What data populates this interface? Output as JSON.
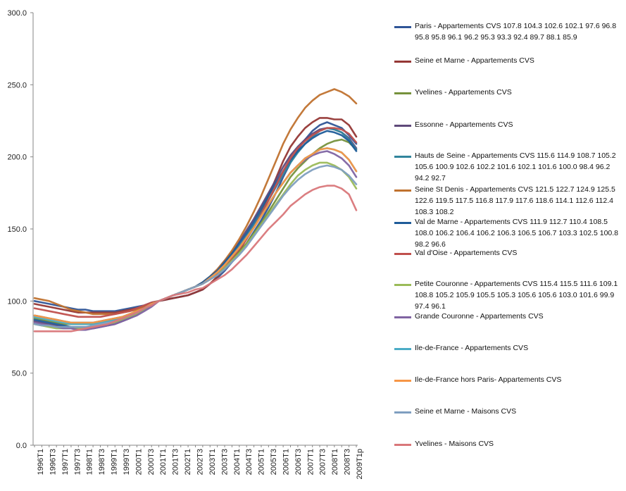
{
  "chart_data": {
    "type": "line",
    "title": "",
    "xlabel": "",
    "ylabel": "",
    "ylim": [
      0,
      300
    ],
    "yticks": [
      "0.0",
      "50.0",
      "100.0",
      "150.0",
      "200.0",
      "250.0",
      "300.0"
    ],
    "x_tick_labels": [
      "1996T1",
      "1996T3",
      "1997T1",
      "1997T3",
      "1998T1",
      "1998T3",
      "1999T1",
      "1999T3",
      "2000T1",
      "2000T3",
      "2001T1",
      "2001T3",
      "2002T1",
      "2002T3",
      "2003T1",
      "2003T3",
      "2004T1",
      "2004T3",
      "2005T1",
      "2005T3",
      "2006T1",
      "2006T3",
      "2007T1",
      "2007T3",
      "2008T1",
      "2008T3",
      "2009T1p"
    ],
    "grid": false,
    "legend_position": "right",
    "series": [
      {
        "name": "Paris - Appartements CVS 107.8 104.3 102.6 102.1 97.6 96.8 95.8 95.8 96.1 96.2 95.3 93.3 92.4 89.7 88.1 85.9",
        "color": "#2f5597",
        "values": [
          100,
          99,
          98,
          97,
          96,
          95,
          94,
          94,
          93,
          93,
          93,
          93,
          94,
          95,
          96,
          97,
          99,
          100,
          101,
          102,
          103,
          104,
          106,
          108,
          112,
          116,
          121,
          127,
          133,
          140,
          148,
          156,
          165,
          175,
          186,
          196,
          205,
          212,
          218,
          222,
          224,
          222,
          220,
          215,
          209
        ]
      },
      {
        "name": "Seine et Marne - Appartements CVS",
        "color": "#953735",
        "values": [
          98,
          97,
          96,
          95,
          94,
          93,
          92,
          92,
          92,
          92,
          92,
          92,
          93,
          94,
          95,
          96,
          98,
          100,
          101,
          102,
          103,
          104,
          106,
          108,
          112,
          117,
          123,
          129,
          135,
          143,
          152,
          162,
          173,
          185,
          197,
          207,
          214,
          220,
          224,
          227,
          227,
          226,
          226,
          222,
          214
        ]
      },
      {
        "name": "Yvelines - Appartements CVS",
        "color": "#76923c",
        "values": [
          88,
          87,
          86,
          85,
          84,
          84,
          84,
          84,
          84,
          85,
          86,
          87,
          88,
          90,
          92,
          95,
          98,
          100,
          102,
          104,
          106,
          108,
          110,
          112,
          115,
          119,
          124,
          129,
          134,
          140,
          147,
          154,
          162,
          170,
          178,
          186,
          192,
          197,
          202,
          206,
          209,
          211,
          212,
          210,
          205
        ]
      },
      {
        "name": "Essonne - Appartements CVS",
        "color": "#5f497a",
        "values": [
          86,
          85,
          84,
          83,
          82,
          81,
          81,
          81,
          81,
          82,
          83,
          84,
          86,
          88,
          91,
          94,
          97,
          100,
          102,
          104,
          106,
          108,
          110,
          113,
          117,
          122,
          128,
          134,
          141,
          149,
          157,
          166,
          175,
          184,
          193,
          201,
          207,
          212,
          216,
          219,
          220,
          219,
          217,
          213,
          206
        ]
      },
      {
        "name": "Hauts de Seine - Appartements CVS 115.6 114.9 108.7 105.2 105.6 100.9 102.6 102.2 101.6 102.1 101.6 100.0 98.4 96.2 94.2 92.7",
        "color": "#31859c",
        "values": [
          90,
          89,
          88,
          87,
          86,
          85,
          85,
          85,
          85,
          86,
          87,
          88,
          89,
          91,
          93,
          95,
          98,
          100,
          102,
          104,
          106,
          108,
          110,
          113,
          116,
          121,
          126,
          132,
          138,
          145,
          153,
          161,
          170,
          179,
          188,
          196,
          203,
          209,
          214,
          218,
          220,
          219,
          217,
          212,
          205
        ]
      },
      {
        "name": "Seine St Denis - Appartements CVS 121.5 122.7 124.9 125.5 122.6 119.5 117.5 116.8 117.9 117.6 118.6 114.1 112.6 112.4 108.3 108.2",
        "color": "#c0722f",
        "values": [
          102,
          101,
          100,
          98,
          96,
          94,
          93,
          92,
          91,
          91,
          91,
          91,
          92,
          93,
          94,
          96,
          98,
          100,
          102,
          104,
          106,
          108,
          110,
          113,
          117,
          122,
          128,
          135,
          143,
          152,
          162,
          173,
          185,
          197,
          209,
          219,
          227,
          234,
          239,
          243,
          245,
          247,
          245,
          242,
          237
        ]
      },
      {
        "name": "Val de Marne - Appartements CVS 111.9 112.7 110.4 108.5 108.0 106.2 106.4 106.2 106.3 106.5 106.7 103.3 102.5 100.8 98.2 96.6",
        "color": "#1f5c99",
        "values": [
          87,
          86,
          85,
          84,
          83,
          82,
          82,
          82,
          82,
          83,
          84,
          85,
          87,
          89,
          91,
          94,
          97,
          100,
          102,
          104,
          106,
          108,
          110,
          113,
          117,
          121,
          127,
          133,
          140,
          147,
          155,
          164,
          173,
          182,
          190,
          198,
          204,
          209,
          213,
          216,
          218,
          217,
          215,
          211,
          204
        ]
      },
      {
        "name": "Val d'Oise - Appartements CVS",
        "color": "#c0504d",
        "values": [
          95,
          94,
          93,
          92,
          91,
          90,
          89,
          89,
          89,
          89,
          90,
          91,
          92,
          93,
          95,
          97,
          99,
          100,
          102,
          104,
          106,
          108,
          110,
          112,
          115,
          119,
          124,
          130,
          136,
          143,
          151,
          160,
          170,
          180,
          190,
          199,
          206,
          211,
          215,
          218,
          220,
          220,
          219,
          216,
          210
        ]
      },
      {
        "name": "Petite Couronne - Appartements CVS 115.4 115.5 111.6 109.1 108.8 105.2 105.9 105.5 105.3 105.6 105.6 103.0 101.6 99.9 97.4 96.1",
        "color": "#9bbb59",
        "values": [
          84,
          83,
          82,
          81,
          81,
          81,
          81,
          81,
          82,
          83,
          84,
          85,
          87,
          89,
          91,
          94,
          97,
          100,
          102,
          104,
          106,
          108,
          110,
          112,
          115,
          118,
          123,
          128,
          133,
          139,
          146,
          153,
          160,
          167,
          174,
          181,
          187,
          191,
          194,
          196,
          196,
          194,
          191,
          186,
          178
        ]
      },
      {
        "name": "Grande Couronne - Appartements CVS",
        "color": "#8064a2",
        "values": [
          85,
          84,
          83,
          82,
          81,
          81,
          80,
          80,
          81,
          82,
          83,
          84,
          86,
          88,
          90,
          93,
          96,
          100,
          102,
          104,
          106,
          108,
          110,
          112,
          116,
          120,
          125,
          131,
          137,
          144,
          151,
          159,
          167,
          175,
          182,
          189,
          194,
          198,
          201,
          203,
          204,
          202,
          199,
          194,
          186
        ]
      },
      {
        "name": "Ile-de-France - Appartements CVS",
        "color": "#4bacc6",
        "values": [
          89,
          88,
          87,
          86,
          85,
          84,
          84,
          84,
          84,
          85,
          86,
          87,
          88,
          90,
          92,
          95,
          98,
          100,
          102,
          104,
          106,
          108,
          110,
          112,
          116,
          120,
          125,
          131,
          137,
          144,
          151,
          159,
          167,
          175,
          182,
          189,
          194,
          199,
          202,
          205,
          206,
          205,
          203,
          198,
          190
        ]
      },
      {
        "name": "Ile-de-France hors Paris- Appartements CVS",
        "color": "#f79646",
        "values": [
          90,
          89,
          88,
          87,
          86,
          85,
          85,
          85,
          85,
          86,
          87,
          88,
          89,
          91,
          93,
          95,
          98,
          100,
          102,
          104,
          106,
          108,
          110,
          112,
          116,
          120,
          125,
          131,
          137,
          144,
          151,
          159,
          167,
          175,
          182,
          189,
          194,
          199,
          202,
          205,
          206,
          205,
          203,
          198,
          190
        ]
      },
      {
        "name": "Seine et Marne - Maisons CVS",
        "color": "#7f9fc0",
        "values": [
          84,
          83,
          83,
          82,
          82,
          82,
          82,
          82,
          83,
          84,
          85,
          86,
          88,
          90,
          92,
          95,
          97,
          100,
          102,
          104,
          106,
          108,
          110,
          112,
          115,
          118,
          122,
          127,
          132,
          138,
          145,
          152,
          159,
          166,
          173,
          179,
          184,
          188,
          191,
          193,
          194,
          193,
          191,
          187,
          181
        ]
      },
      {
        "name": "Yvelines - Maisons  CVS",
        "color": "#d9777a",
        "values": [
          79,
          79,
          79,
          79,
          79,
          79,
          80,
          81,
          82,
          83,
          84,
          86,
          88,
          90,
          92,
          95,
          97,
          100,
          102,
          104,
          105,
          106,
          108,
          109,
          112,
          115,
          118,
          122,
          127,
          132,
          138,
          144,
          150,
          155,
          160,
          166,
          170,
          174,
          177,
          179,
          180,
          180,
          178,
          174,
          163
        ]
      }
    ]
  }
}
